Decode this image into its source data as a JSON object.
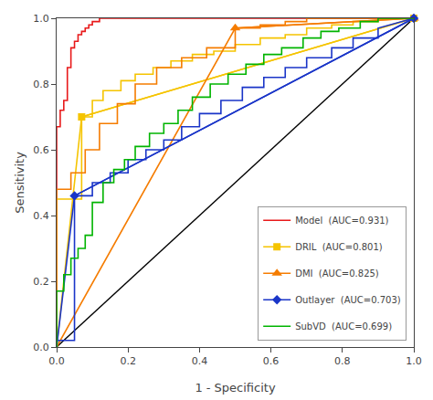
{
  "chart_data": {
    "type": "line",
    "xlabel": "1 - Specificity",
    "ylabel": "Sensitivity",
    "xlim": [
      0.0,
      1.0
    ],
    "ylim": [
      0.0,
      1.0
    ],
    "xticks": [
      {
        "value": 0.0,
        "label": "0.0"
      },
      0.2,
      0.4,
      0.6,
      0.8,
      {
        "value": 1.0,
        "label": "1.0"
      }
    ],
    "yticks": [
      {
        "value": 0.0,
        "label": "0.0"
      },
      0.2,
      0.4,
      0.6,
      0.8,
      {
        "value": 1.0,
        "label": "1.0"
      }
    ],
    "grid": false,
    "legend": "lower right",
    "series": [
      {
        "color": "#000000",
        "x": [
          0.0,
          1.0
        ],
        "values": [
          0.0,
          1.0
        ]
      },
      {
        "name": "Model  (AUC=0.931)",
        "color": "#e8191a",
        "x": [
          0.0,
          0.0,
          0.0,
          0.0,
          0.0,
          0.01,
          0.01,
          0.02,
          0.02,
          0.03,
          0.03,
          0.04,
          0.04,
          0.05,
          0.05,
          0.06,
          0.06,
          0.07,
          0.07,
          0.08,
          0.08,
          0.09,
          0.09,
          0.1,
          0.1,
          0.12,
          0.12,
          0.15,
          0.15,
          0.2,
          0.25,
          0.3,
          0.35,
          0.4,
          0.5,
          0.6,
          0.7,
          0.8,
          0.9,
          1.0
        ],
        "values": [
          0.0,
          0.25,
          0.5,
          0.6,
          0.67,
          0.67,
          0.72,
          0.72,
          0.75,
          0.75,
          0.85,
          0.85,
          0.91,
          0.91,
          0.93,
          0.93,
          0.95,
          0.95,
          0.96,
          0.96,
          0.97,
          0.97,
          0.98,
          0.98,
          0.99,
          0.99,
          1.0,
          1.0,
          1.0,
          1.0,
          1.0,
          1.0,
          1.0,
          1.0,
          1.0,
          1.0,
          1.0,
          1.0,
          1.0,
          1.0
        ]
      },
      {
        "name": "DRIL  (AUC=0.801)",
        "color": "#f5c400",
        "marker": "square",
        "x": [
          0.0,
          0.0,
          0.07,
          0.07,
          0.1,
          0.1,
          0.13,
          0.13,
          0.18,
          0.18,
          0.22,
          0.22,
          0.27,
          0.27,
          0.32,
          0.32,
          0.38,
          0.38,
          0.44,
          0.44,
          0.5,
          0.5,
          0.57,
          0.57,
          0.64,
          0.64,
          0.7,
          0.7,
          0.77,
          0.77,
          0.83,
          0.83,
          0.9,
          0.9,
          1.0
        ],
        "values": [
          0.0,
          0.45,
          0.45,
          0.7,
          0.7,
          0.75,
          0.75,
          0.78,
          0.78,
          0.81,
          0.81,
          0.83,
          0.83,
          0.85,
          0.85,
          0.87,
          0.87,
          0.89,
          0.89,
          0.9,
          0.9,
          0.92,
          0.92,
          0.94,
          0.94,
          0.95,
          0.95,
          0.97,
          0.97,
          0.98,
          0.98,
          0.99,
          0.99,
          1.0,
          1.0
        ],
        "straight": {
          "x": [
            0.0,
            0.07,
            1.0
          ],
          "values": [
            0.0,
            0.7,
            1.0
          ]
        },
        "marker_points": {
          "x": [
            0.07,
            1.0
          ],
          "values": [
            0.7,
            1.0
          ]
        }
      },
      {
        "name": "DMI  (AUC=0.825)",
        "color": "#f57c00",
        "marker": "triangle-up",
        "x": [
          0.0,
          0.0,
          0.04,
          0.04,
          0.08,
          0.08,
          0.12,
          0.12,
          0.17,
          0.17,
          0.22,
          0.22,
          0.28,
          0.28,
          0.35,
          0.35,
          0.42,
          0.42,
          0.5,
          0.5,
          0.57,
          0.57,
          0.64,
          0.64,
          0.7,
          0.7,
          0.77,
          0.77,
          0.84,
          0.84,
          0.9,
          0.9,
          1.0
        ],
        "values": [
          0.0,
          0.48,
          0.48,
          0.53,
          0.53,
          0.6,
          0.6,
          0.68,
          0.68,
          0.74,
          0.74,
          0.8,
          0.8,
          0.85,
          0.85,
          0.88,
          0.88,
          0.91,
          0.91,
          0.97,
          0.97,
          0.98,
          0.98,
          0.99,
          0.99,
          1.0,
          1.0,
          1.0,
          1.0,
          1.0,
          1.0,
          1.0,
          1.0
        ],
        "straight": {
          "x": [
            0.0,
            0.5,
            1.0
          ],
          "values": [
            0.0,
            0.97,
            1.0
          ]
        },
        "marker_points": {
          "x": [
            0.5,
            1.0
          ],
          "values": [
            0.97,
            1.0
          ]
        }
      },
      {
        "name": "Outlayer  (AUC=0.703)",
        "color": "#1a35c8",
        "marker": "diamond",
        "x": [
          0.0,
          0.0,
          0.05,
          0.05,
          0.1,
          0.1,
          0.15,
          0.15,
          0.2,
          0.2,
          0.25,
          0.25,
          0.3,
          0.3,
          0.35,
          0.35,
          0.4,
          0.4,
          0.46,
          0.46,
          0.52,
          0.52,
          0.58,
          0.58,
          0.64,
          0.64,
          0.7,
          0.7,
          0.77,
          0.77,
          0.83,
          0.83,
          0.9,
          0.9,
          1.0
        ],
        "values": [
          0.0,
          0.02,
          0.02,
          0.46,
          0.46,
          0.5,
          0.5,
          0.53,
          0.53,
          0.57,
          0.57,
          0.6,
          0.6,
          0.63,
          0.63,
          0.67,
          0.67,
          0.71,
          0.71,
          0.75,
          0.75,
          0.79,
          0.79,
          0.82,
          0.82,
          0.85,
          0.85,
          0.88,
          0.88,
          0.91,
          0.91,
          0.94,
          0.94,
          0.97,
          1.0
        ],
        "straight": {
          "x": [
            0.0,
            0.05,
            1.0
          ],
          "values": [
            0.0,
            0.46,
            1.0
          ]
        },
        "marker_points": {
          "x": [
            0.05,
            1.0
          ],
          "values": [
            0.46,
            1.0
          ]
        }
      },
      {
        "name": "SubVD  (AUC=0.699)",
        "color": "#00b400",
        "x": [
          0.0,
          0.0,
          0.02,
          0.02,
          0.04,
          0.04,
          0.06,
          0.06,
          0.08,
          0.08,
          0.1,
          0.1,
          0.13,
          0.13,
          0.16,
          0.16,
          0.19,
          0.19,
          0.22,
          0.22,
          0.26,
          0.26,
          0.3,
          0.3,
          0.34,
          0.34,
          0.38,
          0.38,
          0.43,
          0.43,
          0.48,
          0.48,
          0.53,
          0.53,
          0.58,
          0.58,
          0.63,
          0.63,
          0.69,
          0.69,
          0.74,
          0.74,
          0.79,
          0.79,
          0.85,
          0.85,
          0.9,
          0.9,
          0.95,
          0.95,
          1.0
        ],
        "values": [
          0.0,
          0.17,
          0.17,
          0.22,
          0.22,
          0.27,
          0.27,
          0.3,
          0.3,
          0.34,
          0.34,
          0.44,
          0.44,
          0.5,
          0.5,
          0.54,
          0.54,
          0.57,
          0.57,
          0.61,
          0.61,
          0.65,
          0.65,
          0.68,
          0.68,
          0.72,
          0.72,
          0.76,
          0.76,
          0.8,
          0.8,
          0.83,
          0.83,
          0.86,
          0.86,
          0.89,
          0.89,
          0.91,
          0.91,
          0.94,
          0.94,
          0.96,
          0.96,
          0.97,
          0.97,
          0.99,
          0.99,
          1.0,
          1.0,
          1.0,
          1.0
        ]
      }
    ]
  }
}
